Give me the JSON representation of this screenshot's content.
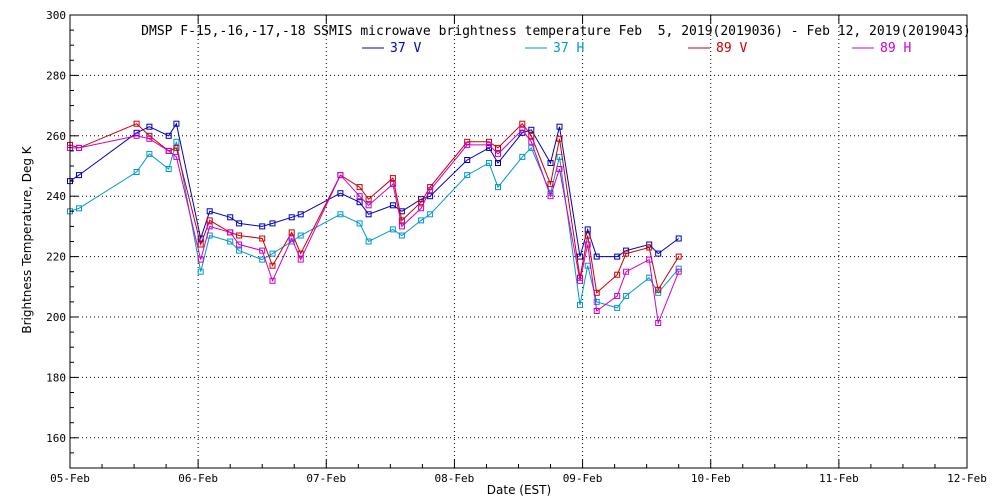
{
  "chart_data": {
    "type": "line",
    "title": "DMSP F-15,-16,-17,-18 SSMIS microwave brightness temperature Feb  5, 2019(2019036) - Feb 12, 2019(2019043)",
    "xlabel": "Date (EST)",
    "ylabel": "Brightness Temperature, Deg K",
    "xlim": [
      0,
      7
    ],
    "ylim": [
      150,
      300
    ],
    "x_ticks": [
      0,
      1,
      2,
      3,
      4,
      5,
      6,
      7
    ],
    "x_tick_labels": [
      "05-Feb",
      "06-Feb",
      "07-Feb",
      "08-Feb",
      "09-Feb",
      "10-Feb",
      "11-Feb",
      "12-Feb"
    ],
    "y_ticks": [
      160,
      180,
      200,
      220,
      240,
      260,
      280,
      300
    ],
    "y_tick_labels": [
      "160",
      "180",
      "200",
      "220",
      "240",
      "260",
      "280",
      "300"
    ],
    "grid": true,
    "legend_position": "top",
    "x": [
      0.0,
      0.07,
      0.52,
      0.62,
      0.77,
      0.83,
      1.02,
      1.09,
      1.25,
      1.32,
      1.5,
      1.58,
      1.73,
      1.8,
      2.11,
      2.26,
      2.33,
      2.52,
      2.59,
      2.74,
      2.81,
      3.1,
      3.27,
      3.34,
      3.53,
      3.6,
      3.75,
      3.82,
      3.98,
      4.04,
      4.11,
      4.27,
      4.34,
      4.52,
      4.59,
      4.75,
      4.82
    ],
    "series": [
      {
        "name": "37 V",
        "color": "#0000bb",
        "values": [
          245,
          247,
          261,
          263,
          260,
          264,
          226,
          235,
          233,
          231,
          230,
          231,
          233,
          234,
          241,
          238,
          234,
          237,
          235,
          239,
          240,
          252,
          256,
          251,
          261,
          262,
          251,
          263,
          220,
          229,
          220,
          220,
          222,
          224,
          221,
          226,
          null
        ]
      },
      {
        "name": "37 H",
        "color": "#0099cc",
        "values": [
          235,
          236,
          248,
          254,
          249,
          258,
          215,
          227,
          225,
          222,
          219,
          221,
          225,
          227,
          234,
          231,
          225,
          229,
          227,
          232,
          234,
          247,
          251,
          243,
          253,
          256,
          241,
          253,
          204,
          217,
          205,
          203,
          207,
          213,
          208,
          216,
          null
        ]
      },
      {
        "name": "89 V",
        "color": "#cc0000",
        "values": [
          257,
          256,
          264,
          260,
          255,
          256,
          224,
          232,
          228,
          227,
          226,
          217,
          228,
          221,
          247,
          243,
          239,
          246,
          232,
          238,
          243,
          258,
          258,
          256,
          264,
          260,
          244,
          259,
          213,
          227,
          208,
          214,
          221,
          223,
          209,
          220,
          null
        ]
      },
      {
        "name": "89 H",
        "color": "#cc00cc",
        "values": [
          256,
          256,
          260,
          259,
          255,
          253,
          219,
          230,
          228,
          224,
          222,
          212,
          226,
          219,
          247,
          240,
          237,
          244,
          230,
          236,
          242,
          257,
          257,
          254,
          262,
          258,
          240,
          249,
          212,
          224,
          202,
          207,
          215,
          219,
          198,
          215,
          null
        ]
      }
    ]
  }
}
